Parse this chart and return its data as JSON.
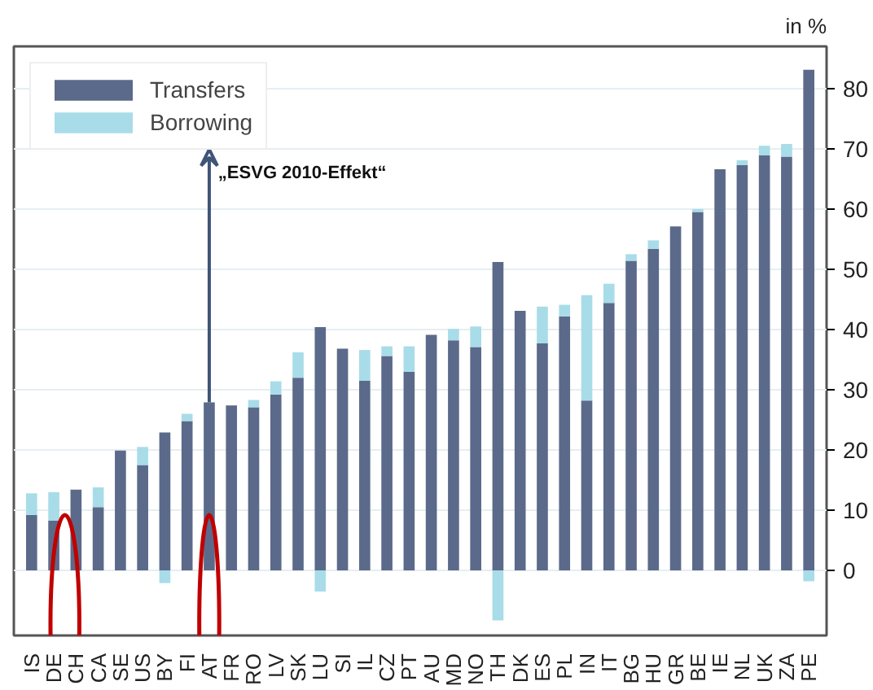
{
  "chart_data": {
    "type": "bar",
    "stacked": true,
    "ylabel": "in %",
    "categories": [
      "IS",
      "DE",
      "CH",
      "CA",
      "SE",
      "US",
      "BY",
      "FI",
      "AT",
      "FR",
      "RO",
      "LV",
      "SK",
      "LU",
      "SI",
      "IL",
      "CZ",
      "PT",
      "AU",
      "MD",
      "NO",
      "TH",
      "DK",
      "ES",
      "PL",
      "IN",
      "IT",
      "BG",
      "HU",
      "GR",
      "BE",
      "IE",
      "NL",
      "UK",
      "ZA",
      "PE"
    ],
    "series": [
      {
        "name": "Transfers",
        "color": "#5b6a8a",
        "values": [
          9.2,
          8.3,
          13.4,
          10.5,
          19.9,
          17.5,
          22.9,
          24.8,
          27.9,
          27.4,
          27.1,
          29.2,
          32.0,
          40.4,
          36.8,
          31.5,
          35.6,
          33.0,
          39.1,
          38.2,
          37.1,
          51.2,
          43.1,
          37.7,
          42.2,
          28.2,
          44.4,
          51.4,
          53.4,
          57.1,
          59.5,
          66.6,
          67.3,
          68.9,
          68.7,
          83.1
        ]
      },
      {
        "name": "Borrowing",
        "color": "#a8dce8",
        "values": [
          3.6,
          4.7,
          null,
          3.3,
          null,
          3.0,
          -2.1,
          1.2,
          null,
          null,
          1.2,
          2.2,
          4.2,
          -3.5,
          null,
          5.1,
          1.6,
          4.2,
          null,
          1.9,
          3.4,
          -8.3,
          null,
          6.1,
          1.9,
          17.5,
          3.2,
          1.1,
          1.4,
          null,
          0.5,
          null,
          0.8,
          1.6,
          2.1,
          -1.8
        ]
      }
    ],
    "ylim": [
      -10.8,
      87
    ],
    "yticks": [
      0,
      10,
      20,
      30,
      40,
      50,
      60,
      70,
      80
    ],
    "grid": "y",
    "legend": "top left",
    "annotations": [
      {
        "text": "„ESVG 2010-Effekt“",
        "x": "AT",
        "y": 27.9
      }
    ]
  }
}
